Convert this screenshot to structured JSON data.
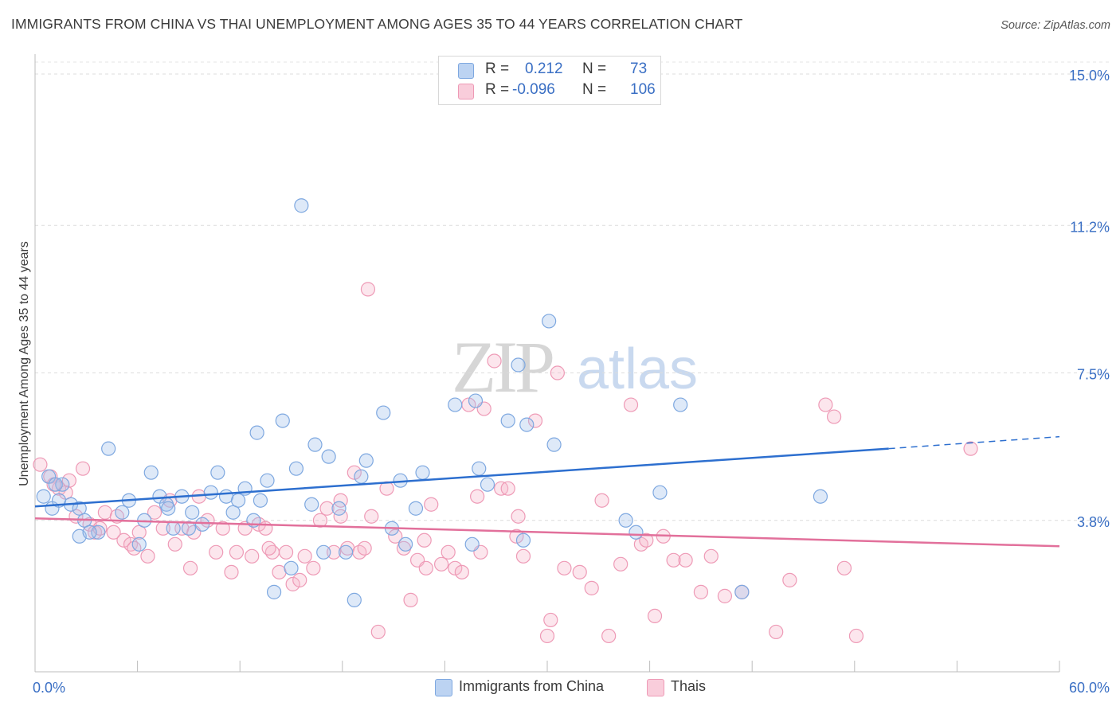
{
  "chart_data": {
    "type": "scatter",
    "title": "IMMIGRANTS FROM CHINA VS THAI UNEMPLOYMENT AMONG AGES 35 TO 44 YEARS CORRELATION CHART",
    "source": "Source: ZipAtlas.com",
    "xlabel": "",
    "ylabel": "Unemployment Among Ages 35 to 44 years",
    "xlim": [
      0,
      60
    ],
    "ylim": [
      0,
      15.5
    ],
    "x_tick_labels": {
      "left": "0.0%",
      "right": "60.0%"
    },
    "y_ticks": [
      {
        "value": 3.8,
        "label": "3.8%"
      },
      {
        "value": 7.5,
        "label": "7.5%"
      },
      {
        "value": 11.2,
        "label": "11.2%"
      },
      {
        "value": 15.0,
        "label": "15.0%"
      }
    ],
    "watermark": {
      "zip": "ZIP",
      "atlas": "atlas"
    },
    "legend": [
      {
        "r_label": "R =",
        "r_value": "0.212",
        "n_label": "N =",
        "n_value": "73",
        "color": "#a9c6ee"
      },
      {
        "r_label": "R =",
        "r_value": "-0.096",
        "n_label": "N =",
        "n_value": "106",
        "color": "#f5b7cb"
      }
    ],
    "series": [
      {
        "name": "Immigrants from China",
        "color": "#7ea8e0",
        "fill": "rgba(160,192,236,0.35)",
        "trend_color": "#2d6fcf",
        "trend": {
          "x0": 0,
          "y0": 4.15,
          "x1": 50,
          "y1": 5.6,
          "dashed_to_x": 60,
          "dashed_to_y": 5.9
        },
        "points": [
          [
            0.5,
            4.4
          ],
          [
            0.8,
            4.9
          ],
          [
            1.0,
            4.1
          ],
          [
            1.4,
            4.3
          ],
          [
            1.6,
            4.7
          ],
          [
            2.1,
            4.2
          ],
          [
            2.6,
            4.1
          ],
          [
            2.6,
            3.4
          ],
          [
            2.9,
            3.8
          ],
          [
            3.7,
            3.5
          ],
          [
            4.3,
            5.6
          ],
          [
            5.1,
            4.0
          ],
          [
            5.5,
            4.3
          ],
          [
            6.1,
            3.2
          ],
          [
            6.4,
            3.8
          ],
          [
            6.8,
            5.0
          ],
          [
            7.3,
            4.4
          ],
          [
            7.7,
            4.2
          ],
          [
            8.1,
            3.6
          ],
          [
            8.6,
            4.4
          ],
          [
            9.0,
            3.6
          ],
          [
            9.2,
            4.0
          ],
          [
            9.8,
            3.7
          ],
          [
            10.3,
            4.5
          ],
          [
            10.7,
            5.0
          ],
          [
            11.2,
            4.4
          ],
          [
            11.6,
            4.0
          ],
          [
            11.9,
            4.3
          ],
          [
            12.3,
            4.6
          ],
          [
            13.0,
            6.0
          ],
          [
            13.2,
            4.3
          ],
          [
            13.6,
            4.8
          ],
          [
            14.0,
            2.0
          ],
          [
            14.5,
            6.3
          ],
          [
            15.0,
            2.6
          ],
          [
            15.3,
            5.1
          ],
          [
            15.6,
            11.7
          ],
          [
            16.2,
            4.2
          ],
          [
            16.4,
            5.7
          ],
          [
            16.9,
            3.0
          ],
          [
            17.2,
            5.4
          ],
          [
            17.8,
            4.1
          ],
          [
            18.2,
            3.0
          ],
          [
            18.7,
            1.8
          ],
          [
            19.1,
            4.9
          ],
          [
            19.4,
            5.3
          ],
          [
            20.4,
            6.5
          ],
          [
            20.9,
            3.6
          ],
          [
            21.4,
            4.8
          ],
          [
            21.7,
            3.2
          ],
          [
            22.3,
            4.1
          ],
          [
            22.7,
            5.0
          ],
          [
            24.6,
            6.7
          ],
          [
            25.6,
            3.2
          ],
          [
            25.8,
            6.8
          ],
          [
            26.0,
            5.1
          ],
          [
            26.5,
            4.7
          ],
          [
            27.7,
            6.3
          ],
          [
            28.3,
            7.7
          ],
          [
            28.6,
            3.3
          ],
          [
            28.8,
            6.2
          ],
          [
            30.1,
            8.8
          ],
          [
            30.4,
            5.7
          ],
          [
            34.6,
            3.8
          ],
          [
            35.2,
            3.5
          ],
          [
            36.6,
            4.5
          ],
          [
            37.8,
            6.7
          ],
          [
            41.4,
            2.0
          ],
          [
            46.0,
            4.4
          ],
          [
            1.2,
            4.7
          ],
          [
            3.2,
            3.5
          ],
          [
            7.8,
            4.1
          ],
          [
            12.8,
            3.8
          ]
        ]
      },
      {
        "name": "Thais",
        "color": "#ee9ab6",
        "fill": "rgba(245,183,203,0.35)",
        "trend_color": "#e2709b",
        "trend": {
          "x0": 0,
          "y0": 3.85,
          "x1": 60,
          "y1": 3.15
        },
        "points": [
          [
            0.3,
            5.2
          ],
          [
            0.9,
            4.9
          ],
          [
            1.4,
            4.6
          ],
          [
            1.8,
            4.5
          ],
          [
            2.0,
            4.8
          ],
          [
            2.4,
            3.9
          ],
          [
            2.8,
            5.1
          ],
          [
            3.2,
            3.7
          ],
          [
            3.5,
            3.5
          ],
          [
            3.8,
            3.6
          ],
          [
            4.1,
            4.0
          ],
          [
            4.6,
            3.5
          ],
          [
            5.2,
            3.3
          ],
          [
            5.6,
            3.2
          ],
          [
            6.1,
            3.5
          ],
          [
            6.6,
            2.9
          ],
          [
            7.0,
            4.0
          ],
          [
            7.5,
            3.6
          ],
          [
            7.9,
            4.3
          ],
          [
            8.2,
            3.2
          ],
          [
            8.6,
            3.6
          ],
          [
            9.1,
            2.6
          ],
          [
            9.6,
            4.4
          ],
          [
            10.1,
            3.8
          ],
          [
            10.6,
            3.0
          ],
          [
            11.0,
            3.6
          ],
          [
            11.5,
            2.5
          ],
          [
            11.8,
            3.0
          ],
          [
            12.3,
            3.6
          ],
          [
            12.7,
            2.9
          ],
          [
            13.1,
            3.7
          ],
          [
            13.5,
            3.6
          ],
          [
            13.9,
            3.0
          ],
          [
            14.3,
            2.5
          ],
          [
            14.7,
            3.0
          ],
          [
            15.1,
            2.2
          ],
          [
            15.5,
            2.3
          ],
          [
            15.8,
            2.9
          ],
          [
            16.3,
            2.6
          ],
          [
            16.7,
            3.8
          ],
          [
            17.1,
            4.1
          ],
          [
            17.5,
            3.0
          ],
          [
            17.9,
            3.9
          ],
          [
            18.3,
            3.1
          ],
          [
            18.7,
            5.0
          ],
          [
            19.0,
            3.0
          ],
          [
            19.3,
            3.1
          ],
          [
            19.7,
            3.9
          ],
          [
            20.1,
            1.0
          ],
          [
            20.6,
            4.6
          ],
          [
            21.1,
            3.4
          ],
          [
            21.6,
            3.1
          ],
          [
            22.0,
            1.8
          ],
          [
            22.4,
            2.8
          ],
          [
            22.8,
            3.3
          ],
          [
            23.2,
            4.2
          ],
          [
            23.8,
            2.7
          ],
          [
            24.2,
            3.0
          ],
          [
            24.6,
            2.6
          ],
          [
            25.0,
            2.5
          ],
          [
            25.4,
            6.7
          ],
          [
            25.9,
            4.4
          ],
          [
            26.3,
            6.6
          ],
          [
            26.9,
            7.8
          ],
          [
            27.3,
            4.6
          ],
          [
            27.7,
            4.6
          ],
          [
            28.2,
            3.4
          ],
          [
            28.6,
            2.9
          ],
          [
            29.3,
            6.3
          ],
          [
            30.0,
            0.9
          ],
          [
            30.6,
            7.5
          ],
          [
            31.0,
            2.6
          ],
          [
            31.9,
            2.5
          ],
          [
            32.6,
            2.1
          ],
          [
            33.2,
            4.3
          ],
          [
            33.6,
            0.9
          ],
          [
            34.3,
            2.7
          ],
          [
            34.9,
            6.7
          ],
          [
            35.5,
            3.2
          ],
          [
            36.3,
            1.4
          ],
          [
            36.8,
            3.4
          ],
          [
            37.4,
            2.8
          ],
          [
            38.1,
            2.8
          ],
          [
            39.0,
            2.0
          ],
          [
            39.6,
            2.9
          ],
          [
            40.4,
            1.9
          ],
          [
            41.4,
            2.0
          ],
          [
            43.4,
            1.0
          ],
          [
            44.2,
            2.3
          ],
          [
            46.3,
            6.7
          ],
          [
            46.8,
            6.4
          ],
          [
            47.4,
            2.6
          ],
          [
            48.1,
            0.9
          ],
          [
            54.8,
            5.6
          ],
          [
            1.1,
            4.7
          ],
          [
            5.8,
            3.1
          ],
          [
            9.3,
            3.5
          ],
          [
            13.7,
            3.1
          ],
          [
            19.5,
            9.6
          ],
          [
            26.1,
            3.0
          ],
          [
            30.2,
            1.3
          ],
          [
            17.9,
            4.3
          ],
          [
            22.9,
            2.6
          ],
          [
            35.8,
            3.3
          ],
          [
            28.3,
            3.9
          ],
          [
            4.8,
            3.9
          ]
        ]
      }
    ]
  }
}
